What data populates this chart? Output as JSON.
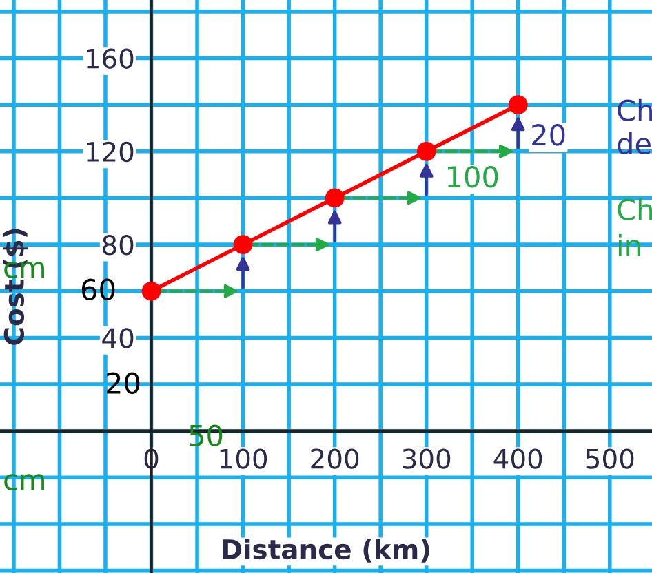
{
  "chart_data": {
    "type": "line",
    "xlabel": "Distance (km)",
    "ylabel": "Cost ($)",
    "x": [
      0,
      100,
      200,
      300,
      400
    ],
    "series": [
      {
        "color": "#ff0000",
        "values": [
          60,
          80,
          100,
          120,
          140
        ]
      }
    ],
    "marker": "circle",
    "xlim": [
      -165,
      546
    ],
    "ylim": [
      -61,
      185
    ],
    "xticks": [
      0,
      100,
      200,
      300,
      400,
      500
    ],
    "yticks": [
      40,
      80,
      120,
      160
    ],
    "grid": true,
    "annotations": [
      {
        "text": "20",
        "x": 433,
        "y": 126
      },
      {
        "text": "100",
        "x": 350,
        "y": 108
      },
      "Ch",
      "de",
      "Ch",
      "in",
      "60",
      "20",
      "50",
      "cm",
      "cm"
    ]
  }
}
